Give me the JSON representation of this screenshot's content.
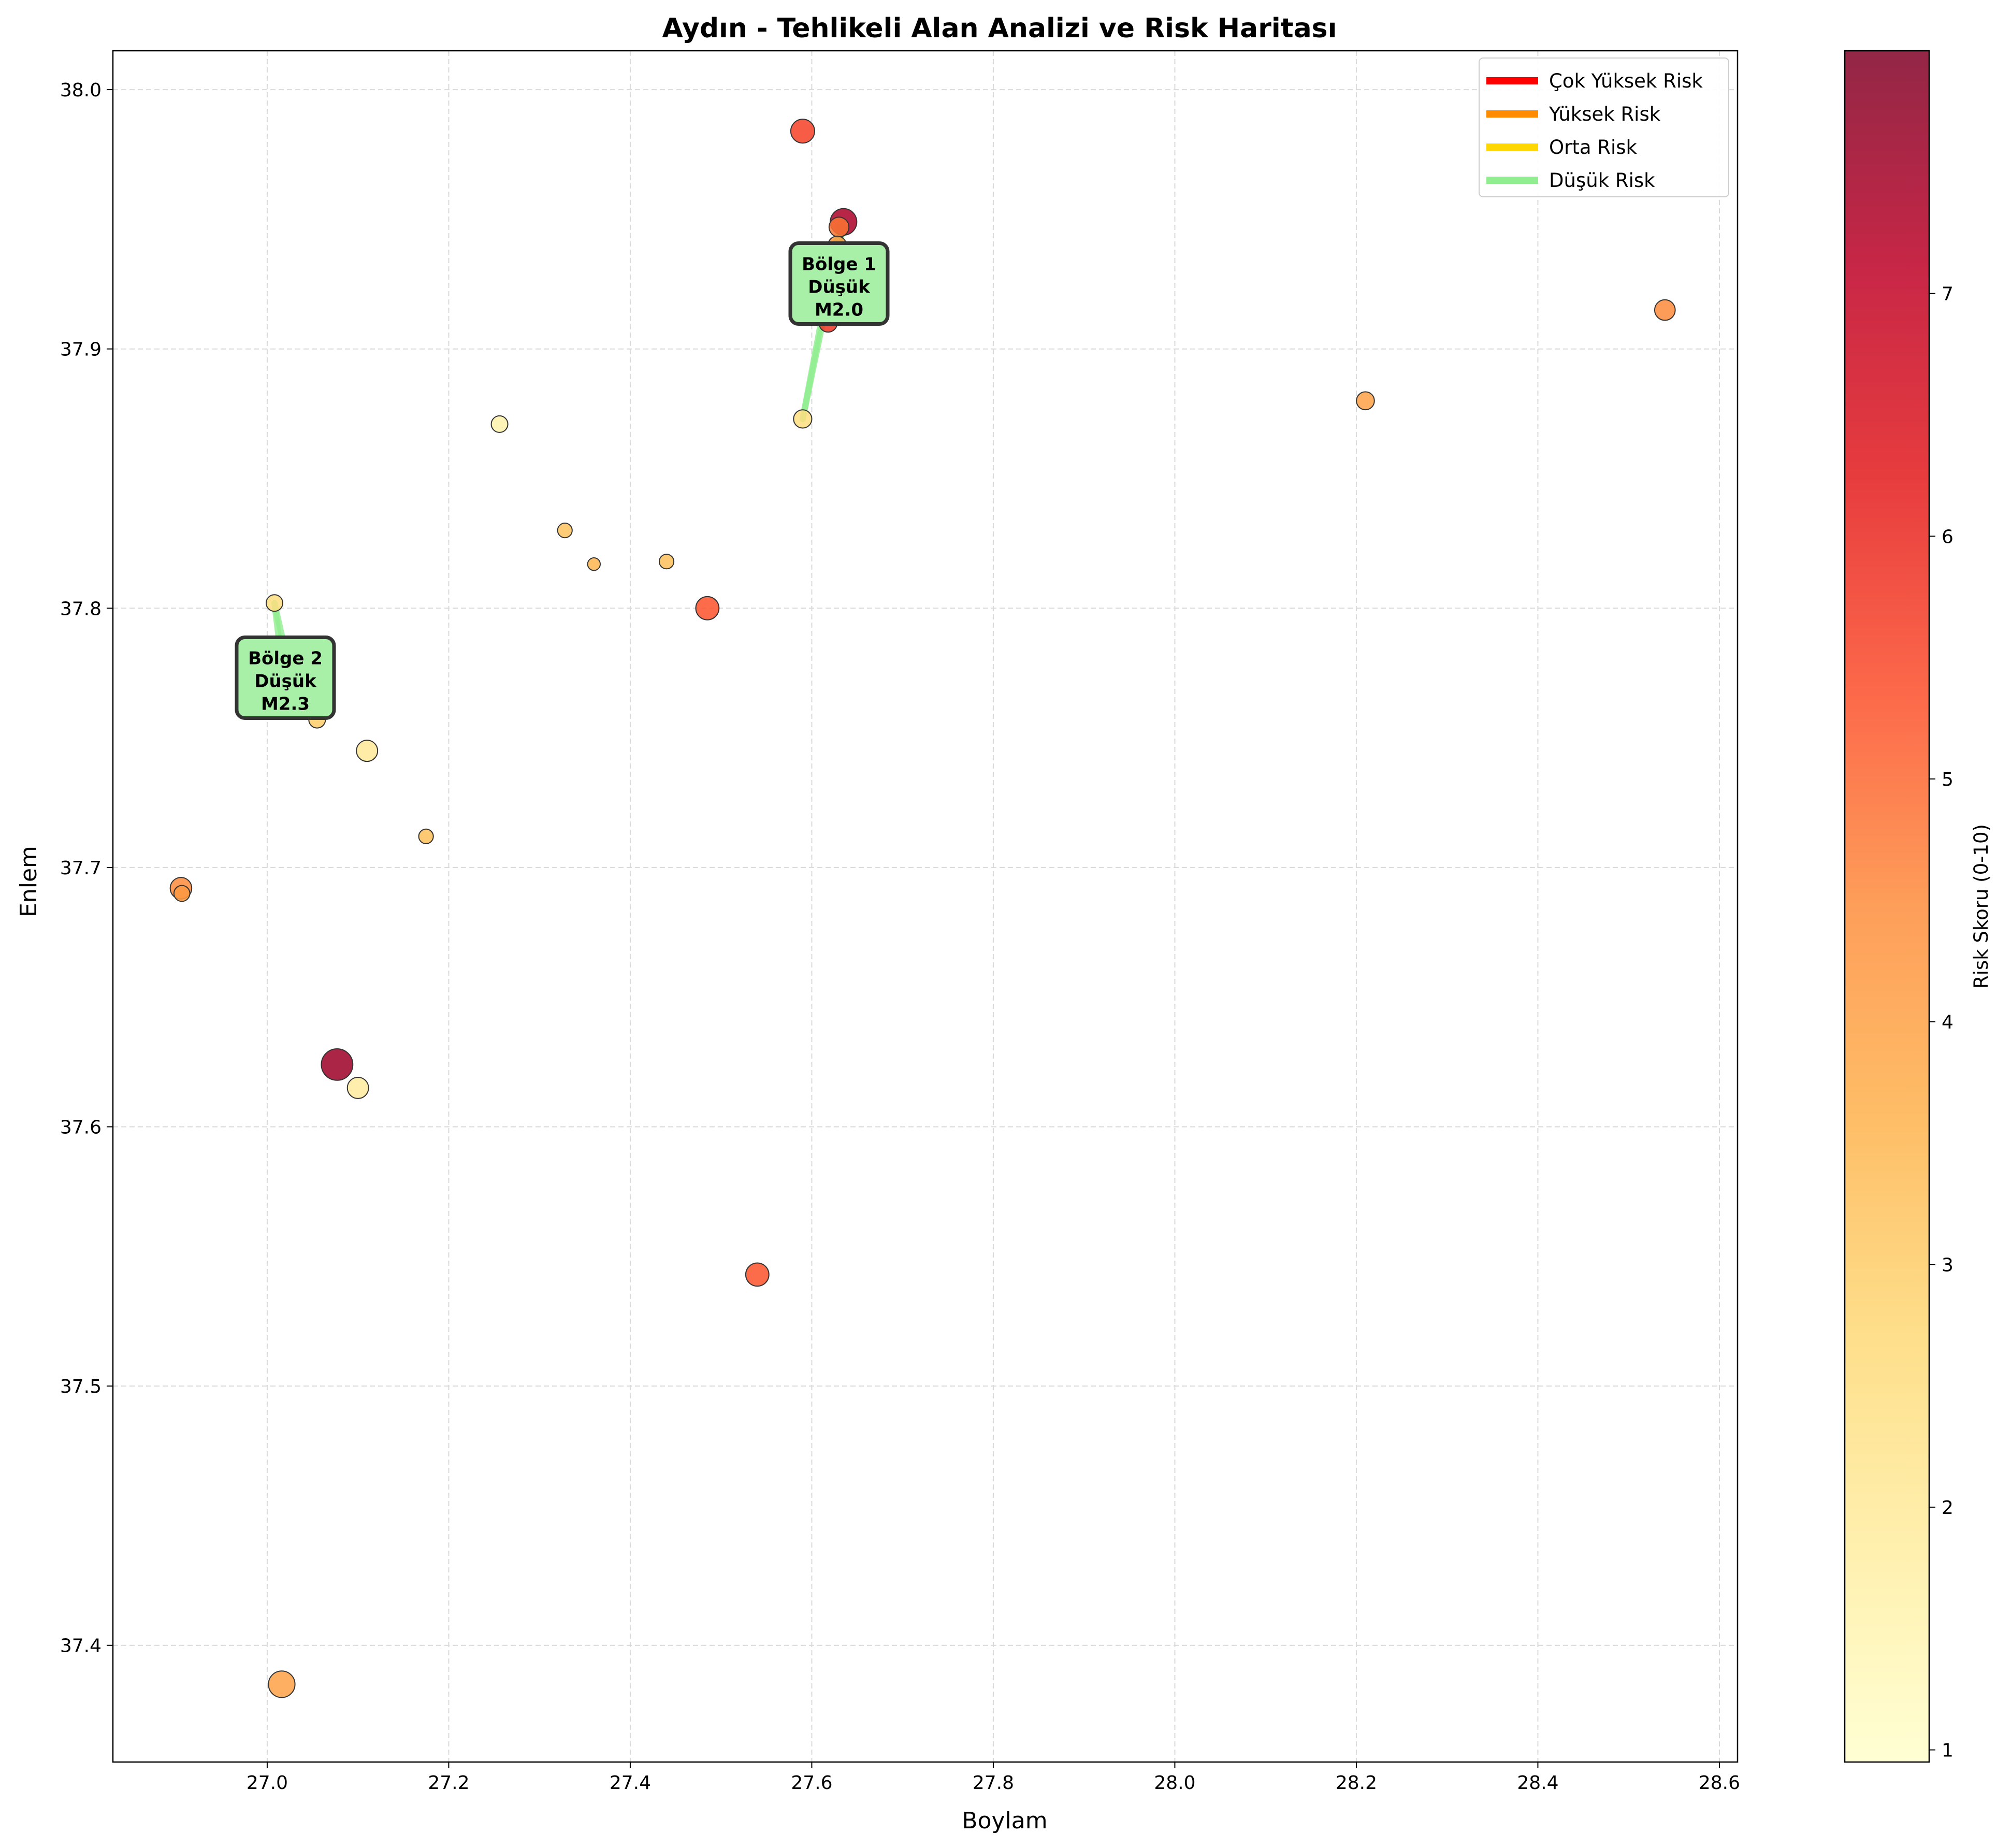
{
  "chart_data": {
    "type": "scatter",
    "title": "Aydın - Tehlikeli Alan Analizi ve Risk Haritası",
    "xlabel": "Boylam",
    "ylabel": "Enlem",
    "xlim": [
      26.83,
      28.62
    ],
    "ylim": [
      37.355,
      38.015
    ],
    "xticks": [
      "27.0",
      "27.2",
      "27.4",
      "27.6",
      "27.8",
      "28.0",
      "28.2",
      "28.4",
      "28.6"
    ],
    "yticks": [
      "37.4",
      "37.5",
      "37.6",
      "37.7",
      "37.8",
      "37.9",
      "38.0"
    ],
    "grid": true,
    "colorbar": {
      "label": "Risk Skoru (0-10)",
      "range": [
        0.95,
        8.0
      ],
      "ticks": [
        "1",
        "2",
        "3",
        "4",
        "5",
        "6",
        "7"
      ],
      "colormap": [
        "#ffffcc",
        "#ffeda0",
        "#fed976",
        "#feb24c",
        "#fd8d3c",
        "#fc4e2a",
        "#e31a1c",
        "#bd0026",
        "#800026"
      ]
    },
    "legend": {
      "placement": "top-right",
      "entries": [
        {
          "label": "Çok Yüksek Risk",
          "color": "#ff0000"
        },
        {
          "label": "Yüksek Risk",
          "color": "#ff8c00"
        },
        {
          "label": "Orta Risk",
          "color": "#ffd700"
        },
        {
          "label": "Düşük Risk",
          "color": "#90ee90"
        }
      ]
    },
    "points": [
      {
        "x": 27.59,
        "y": 37.984,
        "risk": 5.6,
        "size": 7.2
      },
      {
        "x": 27.635,
        "y": 37.949,
        "risk": 7.4,
        "size": 8.0
      },
      {
        "x": 27.63,
        "y": 37.947,
        "risk": 4.8,
        "size": 6.0
      },
      {
        "x": 27.628,
        "y": 37.94,
        "risk": 4.2,
        "size": 5.5
      },
      {
        "x": 27.618,
        "y": 37.91,
        "risk": 5.8,
        "size": 5.5
      },
      {
        "x": 27.59,
        "y": 37.873,
        "risk": 2.5,
        "size": 5.5
      },
      {
        "x": 28.54,
        "y": 37.915,
        "risk": 4.5,
        "size": 6.2
      },
      {
        "x": 28.21,
        "y": 37.88,
        "risk": 4.0,
        "size": 5.4
      },
      {
        "x": 27.256,
        "y": 37.871,
        "risk": 1.6,
        "size": 5.0
      },
      {
        "x": 27.328,
        "y": 37.83,
        "risk": 3.2,
        "size": 4.4
      },
      {
        "x": 27.36,
        "y": 37.817,
        "risk": 3.5,
        "size": 3.8
      },
      {
        "x": 27.44,
        "y": 37.818,
        "risk": 3.3,
        "size": 4.4
      },
      {
        "x": 27.485,
        "y": 37.8,
        "risk": 5.3,
        "size": 7.0
      },
      {
        "x": 27.008,
        "y": 37.802,
        "risk": 2.5,
        "size": 5.0
      },
      {
        "x": 27.022,
        "y": 37.762,
        "risk": 3.0,
        "size": 6.2
      },
      {
        "x": 27.055,
        "y": 37.757,
        "risk": 3.0,
        "size": 5.0
      },
      {
        "x": 27.11,
        "y": 37.745,
        "risk": 2.0,
        "size": 6.4
      },
      {
        "x": 27.175,
        "y": 37.712,
        "risk": 3.3,
        "size": 4.4
      },
      {
        "x": 26.905,
        "y": 37.692,
        "risk": 4.5,
        "size": 6.5
      },
      {
        "x": 26.906,
        "y": 37.69,
        "risk": 4.2,
        "size": 4.8
      },
      {
        "x": 27.077,
        "y": 37.624,
        "risk": 7.6,
        "size": 9.5
      },
      {
        "x": 27.1,
        "y": 37.615,
        "risk": 1.9,
        "size": 6.4
      },
      {
        "x": 27.54,
        "y": 37.543,
        "risk": 5.3,
        "size": 7.0
      },
      {
        "x": 27.016,
        "y": 37.385,
        "risk": 4.0,
        "size": 8.0
      }
    ],
    "zones": [
      {
        "label": "Bölge 1",
        "risk_label": "Düşük",
        "magnitude": "M2.0",
        "color": "#90ee90",
        "label_anchor": {
          "x": 27.63,
          "y": 37.924
        },
        "segments": [
          [
            {
              "x": 27.59,
              "y": 37.873
            },
            {
              "x": 27.63,
              "y": 37.947
            }
          ],
          [
            {
              "x": 27.59,
              "y": 37.873
            },
            {
              "x": 27.635,
              "y": 37.949
            }
          ],
          [
            {
              "x": 27.618,
              "y": 37.91
            },
            {
              "x": 27.635,
              "y": 37.949
            }
          ]
        ]
      },
      {
        "label": "Bölge 2",
        "risk_label": "Düşük",
        "magnitude": "M2.3",
        "color": "#90ee90",
        "label_anchor": {
          "x": 27.02,
          "y": 37.772
        },
        "segments": [
          [
            {
              "x": 27.008,
              "y": 37.802
            },
            {
              "x": 27.022,
              "y": 37.762
            }
          ],
          [
            {
              "x": 27.008,
              "y": 37.802
            },
            {
              "x": 27.035,
              "y": 37.76
            }
          ]
        ]
      }
    ]
  }
}
